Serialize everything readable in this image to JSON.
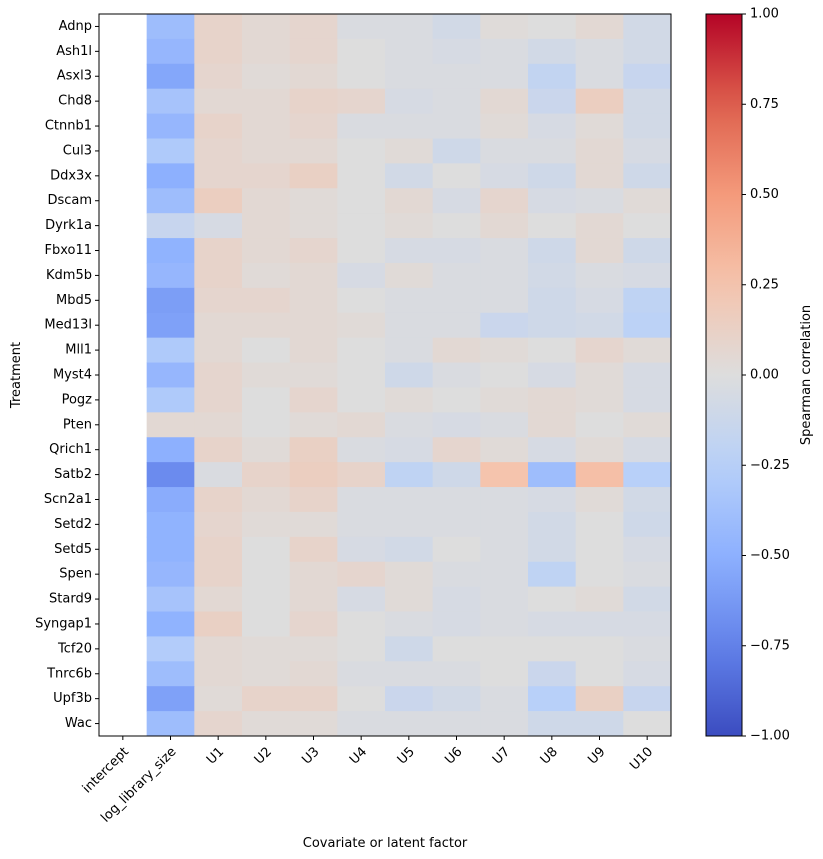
{
  "chart_data": {
    "type": "heatmap",
    "xlabel": "Covariate or latent factor",
    "ylabel": "Treatment",
    "colorbar_label": "Spearman correlation",
    "colormap": "coolwarm",
    "vmin": -1.0,
    "vmax": 1.0,
    "colorbar_ticks": [
      "1.00",
      "0.75",
      "0.50",
      "0.25",
      "0.00",
      "−0.25",
      "−0.50",
      "−0.75",
      "−1.00"
    ],
    "colorbar_tick_values": [
      1.0,
      0.75,
      0.5,
      0.25,
      0.0,
      -0.25,
      -0.5,
      -0.75,
      -1.0
    ],
    "columns": [
      "intercept",
      "log_library_size",
      "U1",
      "U2",
      "U3",
      "U4",
      "U5",
      "U6",
      "U7",
      "U8",
      "U9",
      "U10"
    ],
    "rows": [
      "Adnp",
      "Ash1l",
      "Asxl3",
      "Chd8",
      "Ctnnb1",
      "Cul3",
      "Ddx3x",
      "Dscam",
      "Dyrk1a",
      "Fbxo11",
      "Kdm5b",
      "Mbd5",
      "Med13l",
      "Mll1",
      "Myst4",
      "Pogz",
      "Pten",
      "Qrich1",
      "Satb2",
      "Scn2a1",
      "Setd2",
      "Setd5",
      "Spen",
      "Stard9",
      "Syngap1",
      "Tcf20",
      "Tnrc6b",
      "Upf3b",
      "Wac"
    ],
    "values": [
      [
        null,
        -0.4,
        0.1,
        0.05,
        0.08,
        -0.03,
        -0.03,
        -0.08,
        0.02,
        0.0,
        0.05,
        -0.08
      ],
      [
        null,
        -0.45,
        0.1,
        0.05,
        0.08,
        0.0,
        -0.03,
        -0.05,
        -0.03,
        -0.08,
        -0.03,
        -0.08
      ],
      [
        null,
        -0.55,
        0.08,
        0.03,
        0.05,
        0.0,
        -0.03,
        -0.03,
        -0.03,
        -0.18,
        -0.03,
        -0.15
      ],
      [
        null,
        -0.35,
        0.05,
        0.05,
        0.1,
        0.08,
        -0.05,
        -0.03,
        0.05,
        -0.13,
        0.15,
        -0.08
      ],
      [
        null,
        -0.45,
        0.1,
        0.05,
        0.08,
        -0.03,
        -0.03,
        -0.03,
        0.03,
        -0.05,
        0.03,
        -0.08
      ],
      [
        null,
        -0.3,
        0.08,
        0.05,
        0.05,
        0.0,
        0.03,
        -0.1,
        -0.03,
        -0.03,
        0.05,
        -0.05
      ],
      [
        null,
        -0.5,
        0.08,
        0.08,
        0.13,
        0.0,
        -0.08,
        0.0,
        -0.05,
        -0.1,
        0.05,
        -0.1
      ],
      [
        null,
        -0.4,
        0.15,
        0.05,
        0.03,
        0.0,
        0.05,
        -0.05,
        0.08,
        -0.05,
        -0.03,
        0.03
      ],
      [
        null,
        -0.15,
        -0.05,
        0.05,
        0.03,
        0.0,
        0.03,
        0.0,
        0.05,
        0.0,
        0.05,
        0.0
      ],
      [
        null,
        -0.48,
        0.1,
        0.05,
        0.08,
        0.0,
        -0.05,
        -0.05,
        -0.03,
        -0.1,
        0.05,
        -0.1
      ],
      [
        null,
        -0.45,
        0.1,
        0.03,
        0.05,
        -0.05,
        0.03,
        -0.03,
        -0.03,
        -0.08,
        -0.03,
        -0.05
      ],
      [
        null,
        -0.6,
        0.08,
        0.08,
        0.05,
        0.0,
        -0.03,
        -0.03,
        -0.03,
        -0.1,
        -0.05,
        -0.2
      ],
      [
        null,
        -0.58,
        0.05,
        0.05,
        0.05,
        0.03,
        -0.03,
        -0.03,
        -0.13,
        -0.1,
        -0.08,
        -0.22
      ],
      [
        null,
        -0.3,
        0.05,
        0.0,
        0.05,
        0.0,
        -0.03,
        0.05,
        0.03,
        0.0,
        0.08,
        0.03
      ],
      [
        null,
        -0.45,
        0.08,
        0.03,
        0.03,
        0.0,
        -0.1,
        -0.03,
        0.0,
        -0.05,
        0.03,
        -0.05
      ],
      [
        null,
        -0.3,
        0.08,
        0.0,
        0.08,
        0.0,
        0.03,
        0.0,
        0.03,
        0.05,
        0.03,
        -0.05
      ],
      [
        null,
        0.05,
        0.05,
        0.0,
        0.03,
        0.05,
        -0.03,
        -0.05,
        -0.03,
        0.05,
        0.0,
        0.03
      ],
      [
        null,
        -0.5,
        0.1,
        0.03,
        0.13,
        -0.03,
        -0.05,
        0.08,
        0.03,
        -0.05,
        0.03,
        -0.05
      ],
      [
        null,
        -0.7,
        -0.03,
        0.1,
        0.15,
        0.1,
        -0.2,
        -0.1,
        0.25,
        -0.4,
        0.28,
        -0.25
      ],
      [
        null,
        -0.52,
        0.1,
        0.05,
        0.1,
        -0.03,
        -0.03,
        -0.03,
        -0.03,
        -0.05,
        0.03,
        -0.08
      ],
      [
        null,
        -0.48,
        0.08,
        0.03,
        0.03,
        -0.03,
        -0.03,
        -0.03,
        -0.03,
        -0.08,
        0.0,
        -0.1
      ],
      [
        null,
        -0.48,
        0.1,
        0.0,
        0.1,
        -0.05,
        -0.08,
        0.0,
        -0.03,
        -0.08,
        0.0,
        -0.05
      ],
      [
        null,
        -0.45,
        0.1,
        0.0,
        0.05,
        0.08,
        0.03,
        -0.03,
        -0.03,
        -0.2,
        0.0,
        -0.03
      ],
      [
        null,
        -0.35,
        0.05,
        0.0,
        0.05,
        -0.05,
        0.03,
        -0.05,
        -0.03,
        0.0,
        0.03,
        -0.08
      ],
      [
        null,
        -0.48,
        0.13,
        0.0,
        0.08,
        0.0,
        -0.03,
        -0.05,
        -0.03,
        -0.05,
        -0.05,
        -0.05
      ],
      [
        null,
        -0.28,
        0.05,
        0.03,
        0.03,
        0.0,
        -0.1,
        0.0,
        0.0,
        0.0,
        0.0,
        -0.03
      ],
      [
        null,
        -0.4,
        0.05,
        0.03,
        0.05,
        -0.03,
        -0.03,
        -0.03,
        0.0,
        -0.13,
        0.0,
        -0.05
      ],
      [
        null,
        -0.58,
        0.03,
        0.1,
        0.1,
        0.0,
        -0.13,
        -0.08,
        -0.03,
        -0.25,
        0.13,
        -0.15
      ],
      [
        null,
        -0.4,
        0.08,
        0.03,
        0.03,
        -0.03,
        -0.03,
        -0.03,
        -0.03,
        -0.1,
        -0.1,
        0.0
      ]
    ]
  }
}
